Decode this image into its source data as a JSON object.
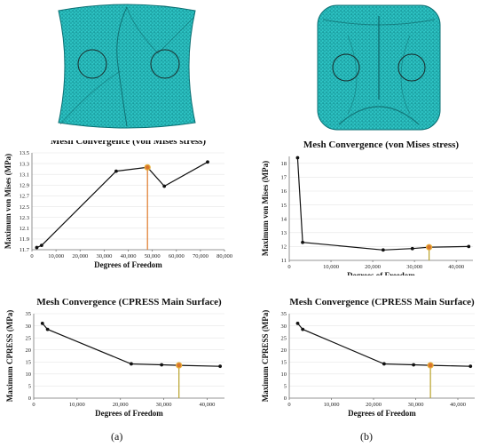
{
  "captions": {
    "a": "(a)",
    "b": "(b)"
  },
  "colors": {
    "mesh_fill": "#2ec4c4",
    "mesh_line": "#0a6f73",
    "marker": "#d8742c",
    "guide_a": "#e07a2a",
    "guide_b": "#b8a22a"
  },
  "chart_data": [
    {
      "id": "a-top",
      "type": "line",
      "title": "Mesh Convergence (von Mises stress)",
      "xlabel": "Degrees of Freedom",
      "ylabel": "Maximum von Mises (MPa)",
      "xlim": [
        0,
        80000
      ],
      "ylim": [
        11.7,
        13.5
      ],
      "xticks": [
        0,
        10000,
        20000,
        30000,
        40000,
        50000,
        60000,
        70000,
        80000
      ],
      "xtick_labels": [
        "0",
        "10,000",
        "20,000",
        "30,000",
        "40,000",
        "50,000",
        "60,000",
        "70,000",
        "80,000"
      ],
      "yticks": [
        11.7,
        11.9,
        12.1,
        12.3,
        12.5,
        12.7,
        12.9,
        13.1,
        13.3,
        13.5
      ],
      "ytick_labels": [
        "11.7",
        "11.9",
        "12.1",
        "12.3",
        "12.5",
        "12.7",
        "12.9",
        "13.1",
        "13.3",
        "13.5"
      ],
      "x": [
        2000,
        4000,
        35000,
        48000,
        55000,
        73000
      ],
      "y": [
        11.74,
        11.78,
        13.16,
        13.23,
        12.88,
        13.33
      ],
      "highlight_index": 3,
      "guide": "guide_a"
    },
    {
      "id": "b-top",
      "type": "line",
      "title": "Mesh Convergence (von Mises stress)",
      "xlabel": "Degrees of Freedom",
      "ylabel": "Maximum von Mises (MPa)",
      "xlim": [
        0,
        44000
      ],
      "ylim": [
        11,
        18.5
      ],
      "xticks": [
        0,
        10000,
        20000,
        30000,
        40000
      ],
      "xtick_labels": [
        "0",
        "10,000",
        "20,000",
        "30,000",
        "40,000"
      ],
      "yticks": [
        11,
        12,
        13,
        14,
        15,
        16,
        17,
        18
      ],
      "ytick_labels": [
        "11",
        "12",
        "13",
        "14",
        "15",
        "16",
        "17",
        "18"
      ],
      "x": [
        2000,
        3200,
        22500,
        29500,
        33500,
        43000
      ],
      "y": [
        18.4,
        12.3,
        11.75,
        11.85,
        11.95,
        12.0
      ],
      "highlight_index": 4,
      "guide": "guide_b"
    },
    {
      "id": "a-bottom",
      "type": "line",
      "title": "Mesh Convergence (CPRESS Main Surface)",
      "xlabel": "Degrees of Freedom",
      "ylabel": "Maximum CPRESS (MPa)",
      "xlim": [
        0,
        44000
      ],
      "ylim": [
        0,
        35
      ],
      "xticks": [
        0,
        10000,
        20000,
        30000,
        40000
      ],
      "xtick_labels": [
        "0",
        "10,000",
        "20,000",
        "30,000",
        "40,000"
      ],
      "yticks": [
        0,
        5,
        10,
        15,
        20,
        25,
        30,
        35
      ],
      "ytick_labels": [
        "0",
        "5",
        "10",
        "15",
        "20",
        "25",
        "30",
        "35"
      ],
      "x": [
        2000,
        3200,
        22500,
        29500,
        33500,
        43000
      ],
      "y": [
        31,
        28.5,
        14.2,
        13.8,
        13.6,
        13.2
      ],
      "highlight_index": 4,
      "guide": "guide_b"
    },
    {
      "id": "b-bottom",
      "type": "line",
      "title": "Mesh Convergence (CPRESS Main Surface)",
      "xlabel": "Degrees of Freedom",
      "ylabel": "Maximum CPRESS (MPa)",
      "xlim": [
        0,
        44000
      ],
      "ylim": [
        0,
        35
      ],
      "xticks": [
        0,
        10000,
        20000,
        30000,
        40000
      ],
      "xtick_labels": [
        "0",
        "10,000",
        "20,000",
        "30,000",
        "40,000"
      ],
      "yticks": [
        0,
        5,
        10,
        15,
        20,
        25,
        30,
        35
      ],
      "ytick_labels": [
        "0",
        "5",
        "10",
        "15",
        "20",
        "25",
        "30",
        "35"
      ],
      "x": [
        2000,
        3200,
        22500,
        29500,
        33500,
        43000
      ],
      "y": [
        31,
        28.5,
        14.2,
        13.8,
        13.6,
        13.2
      ],
      "highlight_index": 4,
      "guide": "guide_b"
    }
  ]
}
